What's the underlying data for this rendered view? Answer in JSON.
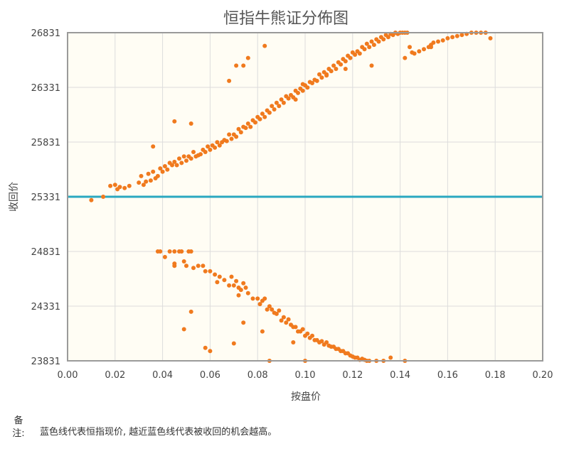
{
  "chart_data": {
    "type": "scatter",
    "title": "恒指牛熊证分佈图",
    "xlabel": "按盘价",
    "ylabel": "收回价",
    "xlim": [
      0,
      0.2
    ],
    "ylim": [
      23831,
      26831
    ],
    "x_ticks": [
      "0.00",
      "0.02",
      "0.04",
      "0.06",
      "0.08",
      "0.10",
      "0.12",
      "0.14",
      "0.16",
      "0.18",
      "0.20"
    ],
    "y_ticks": [
      "23831",
      "24331",
      "24831",
      "25331",
      "25831",
      "26331",
      "26831"
    ],
    "reference_line": {
      "y": 25331,
      "color": "#2aa8c0"
    },
    "grid": true,
    "point_color": "#f07a1e",
    "series": [
      {
        "x": [
          0.01,
          0.015,
          0.018,
          0.02,
          0.021,
          0.022,
          0.024,
          0.026,
          0.03,
          0.031,
          0.032,
          0.033,
          0.034,
          0.035,
          0.036,
          0.037,
          0.038,
          0.039,
          0.04,
          0.041,
          0.042,
          0.043,
          0.044,
          0.045,
          0.046,
          0.047,
          0.048,
          0.049,
          0.05,
          0.051,
          0.052,
          0.053,
          0.054,
          0.055,
          0.056,
          0.057,
          0.058,
          0.059,
          0.06,
          0.061,
          0.062,
          0.063,
          0.064,
          0.065,
          0.066,
          0.067,
          0.068,
          0.069,
          0.07,
          0.071,
          0.072,
          0.073,
          0.074,
          0.075,
          0.076,
          0.077,
          0.078,
          0.079,
          0.08,
          0.081,
          0.082,
          0.083,
          0.084,
          0.085,
          0.086,
          0.087,
          0.088,
          0.089,
          0.09,
          0.091,
          0.092,
          0.093,
          0.094,
          0.095,
          0.096,
          0.097,
          0.098,
          0.099,
          0.1,
          0.101,
          0.102,
          0.103,
          0.104,
          0.105,
          0.106,
          0.107,
          0.108,
          0.109,
          0.11,
          0.111,
          0.112,
          0.113,
          0.114,
          0.115,
          0.116,
          0.117,
          0.118,
          0.119,
          0.12,
          0.121,
          0.122,
          0.123,
          0.124,
          0.125,
          0.126,
          0.127,
          0.128,
          0.129,
          0.13,
          0.131,
          0.132,
          0.133,
          0.134,
          0.135,
          0.136,
          0.137,
          0.138,
          0.139,
          0.14,
          0.141,
          0.142,
          0.143,
          0.144,
          0.145,
          0.146,
          0.148,
          0.15,
          0.152,
          0.153,
          0.154,
          0.156,
          0.158,
          0.16,
          0.162,
          0.164,
          0.166,
          0.168,
          0.17,
          0.172,
          0.174,
          0.176,
          0.178,
          0.045,
          0.052,
          0.036,
          0.068,
          0.071,
          0.074,
          0.076,
          0.083,
          0.096,
          0.099,
          0.109,
          0.117,
          0.128,
          0.142,
          0.153,
          0.038,
          0.045,
          0.048,
          0.052
        ],
        "y": [
          25300,
          25331,
          25430,
          25440,
          25400,
          25420,
          25410,
          25430,
          25460,
          25520,
          25440,
          25470,
          25540,
          25480,
          25560,
          25500,
          25520,
          25590,
          25560,
          25610,
          25580,
          25640,
          25620,
          25650,
          25620,
          25680,
          25640,
          25700,
          25660,
          25700,
          25680,
          25740,
          25700,
          25710,
          25720,
          25760,
          25740,
          25790,
          25760,
          25800,
          25780,
          25830,
          25800,
          25830,
          25850,
          25840,
          25900,
          25860,
          25900,
          25880,
          25950,
          25920,
          25970,
          25960,
          26000,
          25970,
          26030,
          26010,
          26060,
          26040,
          26090,
          26060,
          26120,
          26100,
          26160,
          26130,
          26190,
          26160,
          26220,
          26190,
          26250,
          26230,
          26260,
          26240,
          26300,
          26280,
          26320,
          26300,
          26350,
          26330,
          26380,
          26370,
          26400,
          26390,
          26450,
          26420,
          26470,
          26450,
          26500,
          26480,
          26530,
          26500,
          26560,
          26540,
          26590,
          26570,
          26620,
          26600,
          26650,
          26630,
          26660,
          26640,
          26700,
          26680,
          26730,
          26700,
          26750,
          26720,
          26770,
          26750,
          26790,
          26770,
          26810,
          26790,
          26820,
          26810,
          26831,
          26820,
          26831,
          26831,
          26831,
          26831,
          26700,
          26650,
          26640,
          26660,
          26680,
          26700,
          26720,
          26740,
          26750,
          26760,
          26780,
          26790,
          26800,
          26810,
          26820,
          26831,
          26831,
          26831,
          26831,
          26780,
          26020,
          26000,
          25790,
          26390,
          26530,
          26530,
          26600,
          26710,
          26220,
          26360,
          26440,
          26500,
          26530,
          26600,
          26700,
          24831,
          24831,
          24831,
          24831
        ]
      },
      {
        "x": [
          0.039,
          0.041,
          0.043,
          0.045,
          0.047,
          0.049,
          0.05,
          0.051,
          0.053,
          0.055,
          0.057,
          0.058,
          0.06,
          0.062,
          0.064,
          0.066,
          0.068,
          0.069,
          0.07,
          0.071,
          0.072,
          0.073,
          0.074,
          0.075,
          0.076,
          0.078,
          0.08,
          0.081,
          0.082,
          0.083,
          0.084,
          0.085,
          0.086,
          0.087,
          0.088,
          0.089,
          0.09,
          0.091,
          0.092,
          0.093,
          0.094,
          0.095,
          0.096,
          0.097,
          0.098,
          0.099,
          0.1,
          0.101,
          0.102,
          0.103,
          0.104,
          0.105,
          0.106,
          0.107,
          0.108,
          0.109,
          0.11,
          0.111,
          0.112,
          0.113,
          0.114,
          0.115,
          0.116,
          0.117,
          0.118,
          0.119,
          0.12,
          0.121,
          0.122,
          0.123,
          0.124,
          0.125,
          0.126,
          0.127,
          0.13,
          0.133,
          0.136,
          0.142,
          0.045,
          0.049,
          0.052,
          0.058,
          0.06,
          0.07,
          0.074,
          0.082,
          0.085,
          0.095,
          0.1,
          0.063,
          0.072
        ],
        "y": [
          24831,
          24780,
          24831,
          24700,
          24831,
          24740,
          24700,
          24831,
          24680,
          24700,
          24700,
          24650,
          24650,
          24620,
          24600,
          24570,
          24520,
          24600,
          24520,
          24560,
          24500,
          24480,
          24540,
          24500,
          24450,
          24400,
          24400,
          24350,
          24380,
          24400,
          24300,
          24330,
          24300,
          24270,
          24260,
          24290,
          24200,
          24230,
          24180,
          24210,
          24160,
          24140,
          24140,
          24100,
          24100,
          24120,
          24060,
          24080,
          24040,
          24060,
          24020,
          24020,
          24000,
          24010,
          23980,
          24000,
          23970,
          23960,
          23960,
          23940,
          23940,
          23920,
          23920,
          23900,
          23900,
          23880,
          23870,
          23860,
          23860,
          23840,
          23850,
          23840,
          23831,
          23831,
          23831,
          23831,
          23860,
          23831,
          24720,
          24120,
          24280,
          23950,
          23920,
          23990,
          24180,
          24100,
          23831,
          24000,
          23831,
          24550,
          24430
        ]
      }
    ],
    "note_label": "备注:",
    "note_text": "蓝色线代表恒指现价, 越近蓝色线代表被收回的机会越高。"
  }
}
